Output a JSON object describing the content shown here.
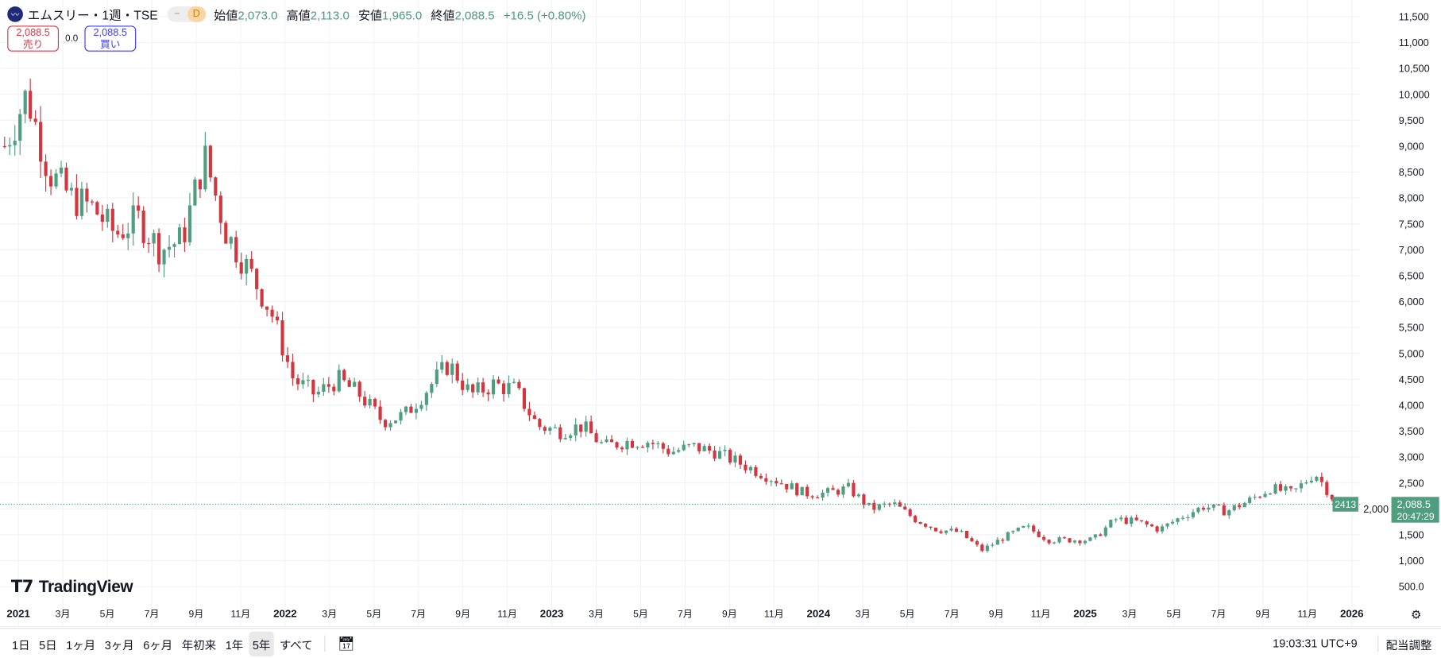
{
  "header": {
    "symbol_title": "エムスリー・1週・TSE",
    "pill_dash": "−",
    "pill_d": "D",
    "ohlc": [
      {
        "label": "始値",
        "value": "2,073.0"
      },
      {
        "label": "高値",
        "value": "2,113.0"
      },
      {
        "label": "安値",
        "value": "1,965.0"
      },
      {
        "label": "終値",
        "value": "2,088.5"
      }
    ],
    "change": "+16.5 (+0.80%)"
  },
  "trade": {
    "sell_price": "2,088.5",
    "sell_label": "売り",
    "spread": "0.0",
    "buy_price": "2,088.5",
    "buy_label": "買い"
  },
  "logo_text": "TradingView",
  "colors": {
    "up": "#4f9e80",
    "down": "#d2363f",
    "grid": "#f0f3fa"
  },
  "price_marker": {
    "left_tag": "2413",
    "price": "2,088.5",
    "countdown": "20:47:29"
  },
  "chart_data": {
    "type": "candlestick",
    "title": "エムスリー・1週・TSE",
    "ylim": [
      500,
      11500
    ],
    "y_ticks": [
      "11,500",
      "11,000",
      "10,500",
      "10,000",
      "9,500",
      "9,000",
      "8,500",
      "8,000",
      "7,500",
      "7,000",
      "6,500",
      "6,000",
      "5,500",
      "5,000",
      "4,500",
      "4,000",
      "3,500",
      "3,000",
      "2,500",
      "2,000",
      "1,500",
      "1,000",
      "500.0"
    ],
    "x_ticks": [
      "2021",
      "3月",
      "5月",
      "7月",
      "9月",
      "11月",
      "2022",
      "3月",
      "5月",
      "7月",
      "9月",
      "11月",
      "2023",
      "3月",
      "5月",
      "7月",
      "9月",
      "11月",
      "2024",
      "3月",
      "5月",
      "7月",
      "9月",
      "11月",
      "2025",
      "3月",
      "5月",
      "7月",
      "9月",
      "11月",
      "2026"
    ],
    "monthly_closes_approx": [
      10000,
      8500,
      8000,
      7800,
      7300,
      7600,
      7000,
      7200,
      8800,
      7300,
      6600,
      5800,
      4500,
      4200,
      4500,
      4200,
      3700,
      3800,
      4300,
      4800,
      4200,
      4400,
      4300,
      3600,
      3500,
      3600,
      3200,
      3300,
      3300,
      3100,
      3200,
      3100,
      2900,
      2700,
      2500,
      2300,
      2300,
      2400,
      2000,
      2100,
      1800,
      1600,
      1550,
      1200,
      1450,
      1650,
      1400,
      1400,
      1400,
      1800,
      1750,
      1600,
      1850,
      2050,
      1950,
      2150,
      2400,
      2300,
      2700,
      2088.5
    ],
    "first_open": 9000,
    "last_close": 2088.5
  },
  "bottom": {
    "ranges": [
      "1日",
      "5日",
      "1ヶ月",
      "3ヶ月",
      "6ヶ月",
      "年初来",
      "1年",
      "5年",
      "すべて"
    ],
    "selected": "5年",
    "clock": "19:03:31 UTC+9",
    "adjust": "配当調整"
  }
}
